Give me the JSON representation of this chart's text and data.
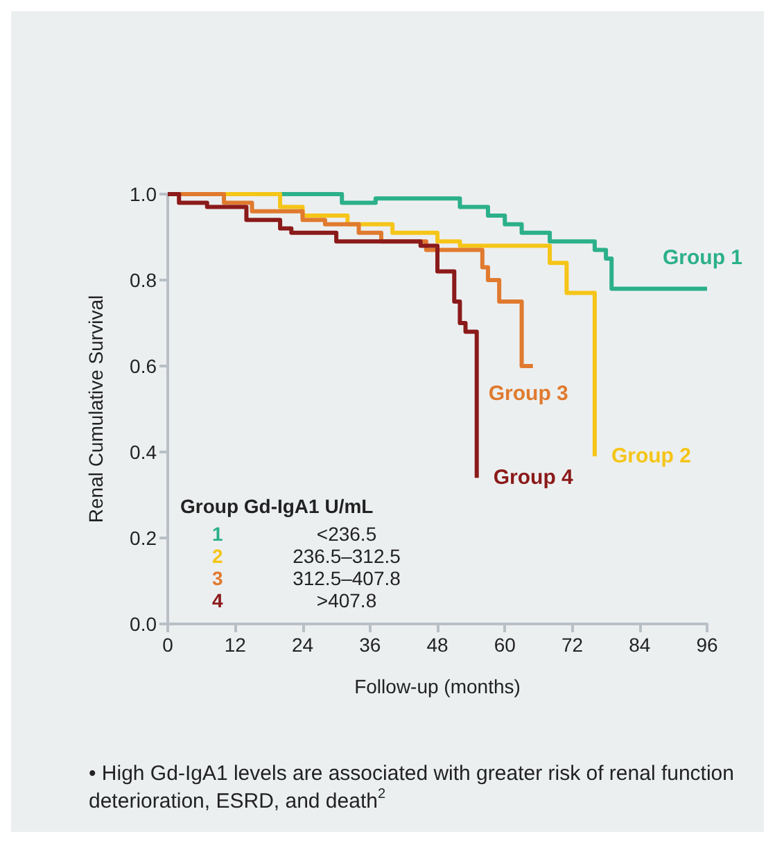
{
  "chart_data": {
    "type": "step",
    "xlabel": "Follow-up (months)",
    "ylabel": "Renal Cumulative Survival",
    "legend_title": "Group Gd-IgA1 U/mL",
    "xlim": [
      0,
      96
    ],
    "xticks": [
      0,
      12,
      24,
      36,
      48,
      60,
      72,
      84,
      96
    ],
    "ylim": [
      0,
      1
    ],
    "yticks": [
      {
        "value": 0,
        "label": "0.0"
      },
      0.2,
      0.4,
      0.6,
      0.8,
      {
        "value": 1,
        "label": "1.0"
      }
    ],
    "grid": false,
    "legend": false,
    "marker": "none",
    "line_style": "solid",
    "series": [
      {
        "name": "Group 1",
        "color": "#2bb08a",
        "x": [
          0,
          31,
          37,
          52,
          57,
          60,
          63,
          68,
          76,
          78,
          79,
          96
        ],
        "values": [
          1,
          0.98,
          0.99,
          0.97,
          0.95,
          0.93,
          0.91,
          0.89,
          0.87,
          0.85,
          0.78,
          0.78
        ]
      },
      {
        "name": "Group 2",
        "color": "#f5c518",
        "x": [
          0,
          20,
          24,
          32,
          40,
          48,
          52,
          68,
          71,
          76
        ],
        "values": [
          1,
          0.97,
          0.95,
          0.93,
          0.91,
          0.89,
          0.88,
          0.84,
          0.77,
          0.39
        ]
      },
      {
        "name": "Group 3",
        "color": "#e07a2e",
        "x": [
          0,
          10,
          15,
          24,
          28,
          34,
          38,
          46,
          56,
          57,
          59,
          63,
          65
        ],
        "values": [
          1,
          0.98,
          0.96,
          0.94,
          0.93,
          0.91,
          0.89,
          0.87,
          0.83,
          0.8,
          0.75,
          0.6,
          0.6
        ]
      },
      {
        "name": "Group 4",
        "color": "#8b1a1a",
        "x": [
          0,
          2,
          7,
          14,
          20,
          22,
          30,
          45,
          48,
          51,
          52,
          53,
          55
        ],
        "values": [
          1,
          0.98,
          0.97,
          0.94,
          0.92,
          0.91,
          0.89,
          0.88,
          0.82,
          0.75,
          0.7,
          0.68,
          0.34
        ]
      }
    ],
    "annotations": [
      "1",
      "<236.5",
      "2",
      "236.5–312.5",
      "3",
      "312.5–407.8",
      "4",
      ">407.8",
      "• High Gd-IgA1 levels are associated with greater risk of renal function deterioration, ESRD, and death$^{2}$"
    ]
  }
}
